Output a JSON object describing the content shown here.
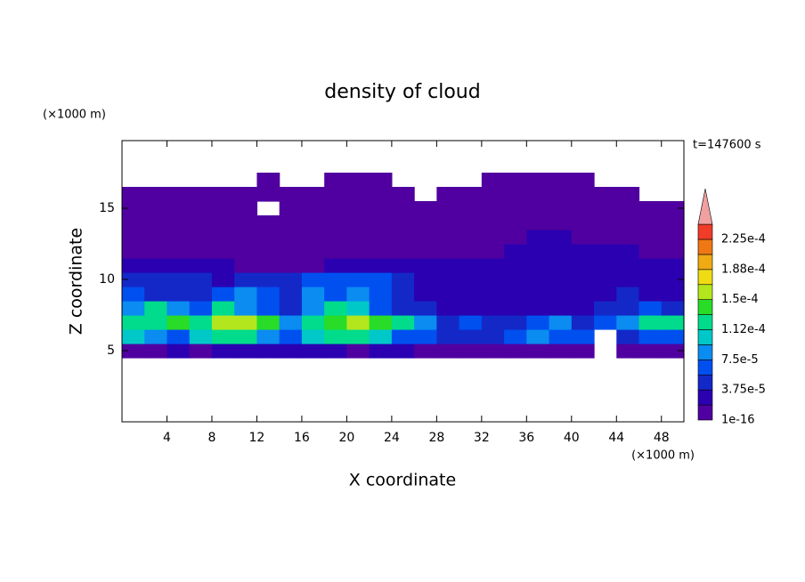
{
  "chart_data": {
    "type": "heatmap",
    "title": "density of cloud",
    "xlabel": "X coordinate",
    "ylabel": "Z coordinate",
    "xunit": "(×1000 m)",
    "yunit": "(×1000 m)",
    "time_label": "t=147600 s",
    "xlim": [
      0,
      50
    ],
    "ylim": [
      0,
      19.75
    ],
    "xticks": [
      4,
      8,
      12,
      16,
      20,
      24,
      28,
      32,
      36,
      40,
      44,
      48
    ],
    "yticks": [
      5,
      10,
      15
    ],
    "x": [
      1,
      3,
      5,
      7,
      9,
      11,
      13,
      15,
      17,
      19,
      21,
      23,
      25,
      27,
      29,
      31,
      33,
      35,
      37,
      39,
      41,
      43,
      45,
      47,
      49
    ],
    "y": [
      5,
      6,
      7,
      8,
      9,
      10,
      11,
      12,
      13,
      14,
      15,
      16,
      17
    ],
    "values": [
      [
        1e-16,
        1e-16,
        2e-05,
        1e-16,
        2e-05,
        2e-05,
        2e-05,
        2e-05,
        2e-05,
        2e-05,
        1e-16,
        2e-05,
        2e-05,
        1e-16,
        1e-16,
        1e-16,
        1e-16,
        1e-16,
        1e-16,
        1e-16,
        1e-16,
        null,
        1e-16,
        1e-16,
        1e-16
      ],
      [
        0.0001,
        8e-05,
        6e-05,
        0.0001,
        0.00012,
        0.00012,
        8e-05,
        6e-05,
        0.0001,
        0.00012,
        0.00012,
        0.0001,
        6e-05,
        6e-05,
        4e-05,
        4e-05,
        4e-05,
        6e-05,
        8e-05,
        6e-05,
        6e-05,
        null,
        4e-05,
        6e-05,
        6e-05
      ],
      [
        0.00012,
        0.00012,
        0.00014,
        0.00012,
        0.00016,
        0.00016,
        0.00014,
        8e-05,
        0.00012,
        0.00014,
        0.00016,
        0.00014,
        0.00012,
        8e-05,
        4e-05,
        6e-05,
        4e-05,
        4e-05,
        6e-05,
        8e-05,
        4e-05,
        6e-05,
        8e-05,
        0.00012,
        0.00012
      ],
      [
        8e-05,
        0.00012,
        8e-05,
        6e-05,
        0.00012,
        8e-05,
        6e-05,
        4e-05,
        8e-05,
        0.00012,
        0.0001,
        6e-05,
        4e-05,
        4e-05,
        2e-05,
        2e-05,
        2e-05,
        2e-05,
        2e-05,
        2e-05,
        2e-05,
        4e-05,
        4e-05,
        6e-05,
        4e-05
      ],
      [
        6e-05,
        4e-05,
        4e-05,
        4e-05,
        6e-05,
        8e-05,
        6e-05,
        4e-05,
        8e-05,
        6e-05,
        8e-05,
        6e-05,
        4e-05,
        2e-05,
        2e-05,
        2e-05,
        2e-05,
        2e-05,
        2e-05,
        2e-05,
        2e-05,
        2e-05,
        4e-05,
        2e-05,
        2e-05
      ],
      [
        4e-05,
        4e-05,
        4e-05,
        4e-05,
        2e-05,
        4e-05,
        4e-05,
        4e-05,
        6e-05,
        6e-05,
        6e-05,
        6e-05,
        4e-05,
        2e-05,
        2e-05,
        2e-05,
        2e-05,
        2e-05,
        2e-05,
        2e-05,
        2e-05,
        2e-05,
        2e-05,
        2e-05,
        2e-05
      ],
      [
        2e-05,
        2e-05,
        2e-05,
        2e-05,
        2e-05,
        1e-16,
        1e-16,
        1e-16,
        1e-16,
        2e-05,
        2e-05,
        2e-05,
        2e-05,
        2e-05,
        2e-05,
        2e-05,
        2e-05,
        2e-05,
        2e-05,
        2e-05,
        2e-05,
        2e-05,
        2e-05,
        2e-05,
        2e-05
      ],
      [
        1e-16,
        1e-16,
        1e-16,
        1e-16,
        1e-16,
        1e-16,
        1e-16,
        1e-16,
        1e-16,
        1e-16,
        1e-16,
        1e-16,
        1e-16,
        1e-16,
        1e-16,
        1e-16,
        1e-16,
        2e-05,
        2e-05,
        2e-05,
        2e-05,
        2e-05,
        2e-05,
        1e-16,
        1e-16
      ],
      [
        1e-16,
        1e-16,
        1e-16,
        1e-16,
        1e-16,
        1e-16,
        1e-16,
        1e-16,
        1e-16,
        1e-16,
        1e-16,
        1e-16,
        1e-16,
        1e-16,
        1e-16,
        1e-16,
        1e-16,
        1e-16,
        2e-05,
        2e-05,
        1e-16,
        1e-16,
        1e-16,
        1e-16,
        1e-16
      ],
      [
        1e-16,
        1e-16,
        1e-16,
        1e-16,
        1e-16,
        1e-16,
        1e-16,
        1e-16,
        1e-16,
        1e-16,
        1e-16,
        1e-16,
        1e-16,
        1e-16,
        1e-16,
        1e-16,
        1e-16,
        1e-16,
        1e-16,
        1e-16,
        1e-16,
        1e-16,
        1e-16,
        1e-16,
        1e-16
      ],
      [
        1e-16,
        1e-16,
        1e-16,
        1e-16,
        1e-16,
        1e-16,
        null,
        1e-16,
        1e-16,
        1e-16,
        1e-16,
        1e-16,
        1e-16,
        1e-16,
        1e-16,
        1e-16,
        1e-16,
        1e-16,
        1e-16,
        1e-16,
        1e-16,
        1e-16,
        1e-16,
        1e-16,
        1e-16
      ],
      [
        1e-16,
        1e-16,
        1e-16,
        1e-16,
        1e-16,
        1e-16,
        1e-16,
        1e-16,
        1e-16,
        1e-16,
        1e-16,
        1e-16,
        1e-16,
        null,
        1e-16,
        1e-16,
        1e-16,
        1e-16,
        1e-16,
        1e-16,
        1e-16,
        1e-16,
        1e-16,
        null,
        null
      ],
      [
        null,
        null,
        null,
        null,
        null,
        null,
        1e-16,
        null,
        null,
        1e-16,
        1e-16,
        1e-16,
        null,
        null,
        null,
        null,
        1e-16,
        1e-16,
        1e-16,
        1e-16,
        1e-16,
        null,
        null,
        null,
        null
      ]
    ],
    "colorbar": {
      "levels": [
        1e-16,
        1.875e-05,
        3.75e-05,
        5.625e-05,
        7.5e-05,
        9.375e-05,
        0.0001125,
        0.00013125,
        0.00015,
        0.00016875,
        0.0001875,
        0.00020625,
        0.000225,
        0.00024375
      ],
      "colors": [
        "#5000a0",
        "#2a00b0",
        "#1428c8",
        "#0050f0",
        "#0a8cf0",
        "#00c8c8",
        "#00dc8c",
        "#28dc28",
        "#b4e61e",
        "#f0dc14",
        "#f0aa14",
        "#f07814",
        "#f03c28"
      ],
      "extend_color": "#f0a0a0",
      "ticks": [
        1e-16,
        {
          "value": 3.75e-05,
          "label": "3.75e-5"
        },
        {
          "value": 7.5e-05,
          "label": "7.5e-5"
        },
        {
          "value": 0.0001125,
          "label": "1.12e-4"
        },
        {
          "value": 0.00015,
          "label": "1.5e-4"
        },
        {
          "value": 0.0001875,
          "label": "1.88e-4"
        },
        {
          "value": 0.000225,
          "label": "2.25e-4"
        }
      ]
    }
  }
}
